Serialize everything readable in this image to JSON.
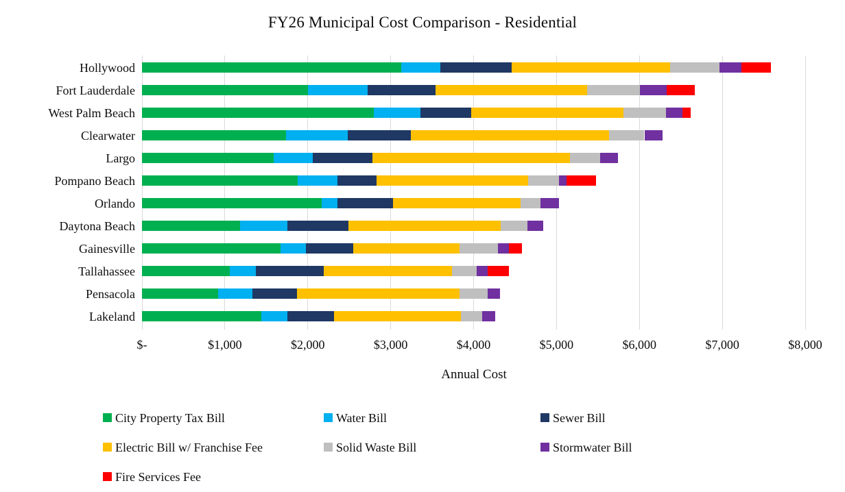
{
  "chart_data": {
    "type": "bar",
    "variant": "horizontal-stacked",
    "title": "FY26 Municipal Cost Comparison - Residential",
    "xlabel": "Annual Cost",
    "ylabel": "",
    "xlim": [
      0,
      8000
    ],
    "grid": true,
    "legend_position": "bottom",
    "legend_columns": 3,
    "x_tick_values": [
      0,
      1000,
      2000,
      3000,
      4000,
      5000,
      6000,
      7000,
      8000
    ],
    "x_tick_labels": [
      "$-",
      "$1,000",
      "$2,000",
      "$3,000",
      "$4,000",
      "$5,000",
      "$6,000",
      "$7,000",
      "$8,000"
    ],
    "categories": [
      "Hollywood",
      "Fort Lauderdale",
      "West Palm Beach",
      "Clearwater",
      "Largo",
      "Pompano Beach",
      "Orlando",
      "Daytona Beach",
      "Gainesville",
      "Tallahassee",
      "Pensacola",
      "Lakeland"
    ],
    "series": [
      {
        "name": "City Property Tax Bill",
        "color": "#00B050",
        "values": [
          3130,
          2000,
          2800,
          1740,
          1590,
          1880,
          2170,
          1180,
          1670,
          1060,
          920,
          1440
        ]
      },
      {
        "name": "Water Bill",
        "color": "#00B0F0",
        "values": [
          470,
          720,
          560,
          740,
          470,
          480,
          190,
          570,
          310,
          310,
          410,
          310
        ]
      },
      {
        "name": "Sewer Bill",
        "color": "#1F3864",
        "values": [
          860,
          820,
          610,
          760,
          720,
          470,
          670,
          740,
          570,
          820,
          540,
          570
        ]
      },
      {
        "name": "Electric Bill w/ Franchise Fee",
        "color": "#FFC000",
        "values": [
          1910,
          1830,
          1840,
          2390,
          2380,
          1830,
          1540,
          1840,
          1280,
          1550,
          1960,
          1530
        ]
      },
      {
        "name": "Solid Waste Bill",
        "color": "#BFBFBF",
        "values": [
          600,
          640,
          510,
          430,
          370,
          370,
          240,
          320,
          460,
          300,
          340,
          250
        ]
      },
      {
        "name": "Stormwater Bill",
        "color": "#7030A0",
        "values": [
          260,
          320,
          200,
          220,
          210,
          90,
          220,
          190,
          140,
          130,
          150,
          160
        ]
      },
      {
        "name": "Fire Services Fee",
        "color": "#FF0000",
        "values": [
          360,
          340,
          100,
          0,
          0,
          360,
          0,
          0,
          150,
          260,
          0,
          0
        ]
      }
    ],
    "colors": {
      "gridline": "#D9D9D9",
      "text": "#0D0D0D",
      "background": "#FFFFFF"
    }
  }
}
